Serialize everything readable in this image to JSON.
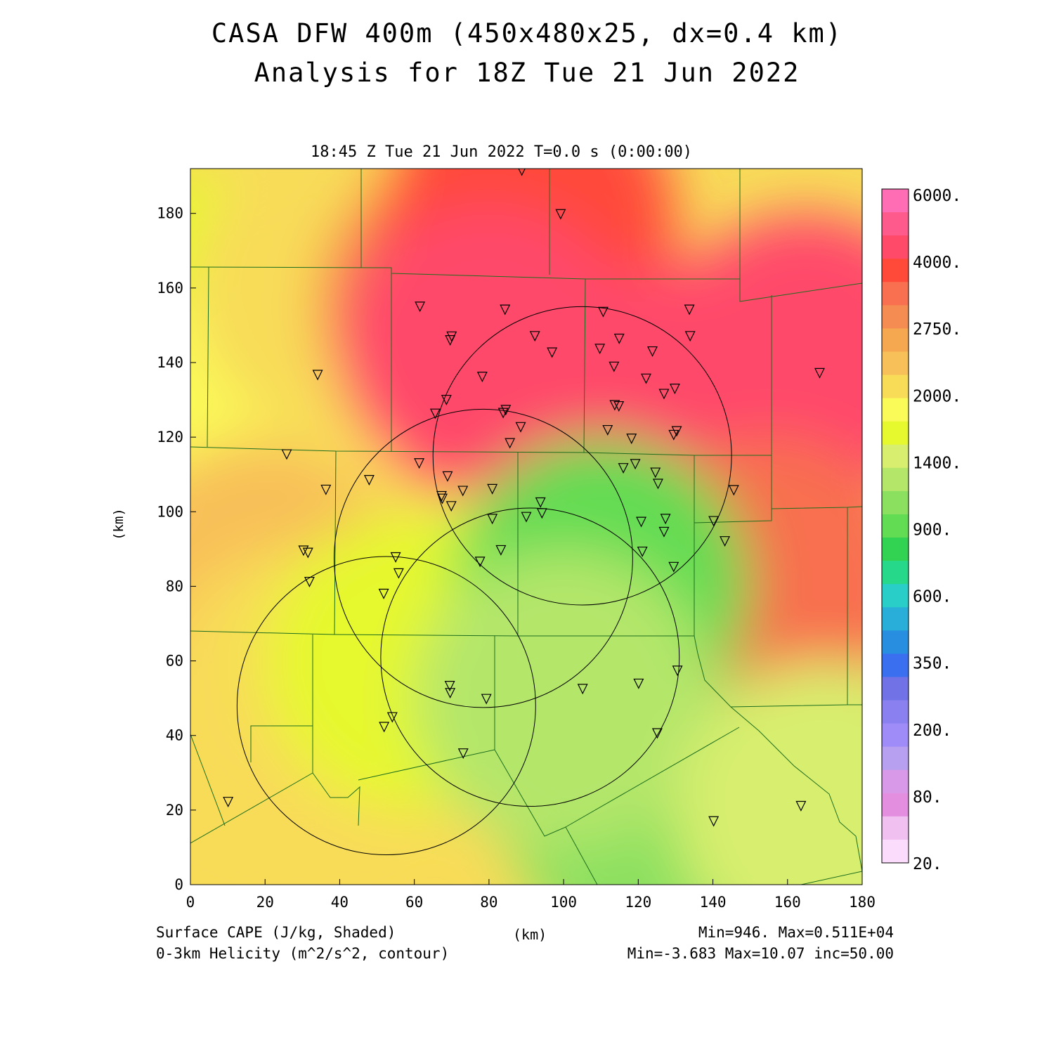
{
  "title": {
    "line1": "CASA DFW 400m (450x480x25, dx=0.4 km)",
    "line2": "Analysis for 18Z Tue 21 Jun 2022"
  },
  "plot_header": "18:45 Z Tue 21 Jun 2022    T=0.0 s (0:00:00)",
  "axes": {
    "xlabel": "(km)",
    "ylabel": "(km)",
    "x_range": [
      0,
      180
    ],
    "y_range": [
      0,
      192
    ],
    "x_ticks": [
      "0",
      "20",
      "40",
      "60",
      "80",
      "100",
      "120",
      "140",
      "160",
      "180"
    ],
    "y_ticks": [
      "0",
      "20",
      "40",
      "60",
      "80",
      "100",
      "120",
      "140",
      "160",
      "180"
    ]
  },
  "footer": {
    "left_line1": "Surface CAPE (J/kg, Shaded)",
    "left_line2": "0-3km Helicity (m^2/s^2, contour)",
    "right_line1": "Min=946. Max=0.511E+04",
    "right_line2": "Min=-3.683 Max=10.07 inc=50.00"
  },
  "colorbar": {
    "labels": [
      "6000.",
      "4000.",
      "2750.",
      "2000.",
      "1400.",
      "900.",
      "600.",
      "350.",
      "200.",
      "80.",
      "20."
    ],
    "colors": [
      "#ff6eb4",
      "#ff5a8c",
      "#ff4a6a",
      "#ff4a3a",
      "#f87050",
      "#f58c52",
      "#f5a850",
      "#f8c058",
      "#f8dc58",
      "#fafa58",
      "#e6f82e",
      "#d8ee6e",
      "#b4e66a",
      "#8ce060",
      "#62dc52",
      "#32d252",
      "#26d88a",
      "#2acec8",
      "#28aed8",
      "#288ee0",
      "#3a70f0",
      "#7072e6",
      "#8a80f0",
      "#a08cf8",
      "#b8a0f0",
      "#d89ae8",
      "#e48ee0",
      "#f0c0f0",
      "#fcdcfc"
    ]
  },
  "chart_data": {
    "type": "heatmap",
    "field": "Surface CAPE (J/kg)",
    "cape_min": 946,
    "cape_max": 5110,
    "helicity_min": -3.683,
    "helicity_max": 10.07,
    "helicity_contour_interval": 50,
    "cape_regions": [
      {
        "level": 1600,
        "x": 5,
        "y": 150
      },
      {
        "level": 1800,
        "x": 25,
        "y": 130
      },
      {
        "level": 2200,
        "x": 40,
        "y": 160
      },
      {
        "level": 3000,
        "x": 75,
        "y": 155
      },
      {
        "level": 3500,
        "x": 90,
        "y": 178
      },
      {
        "level": 4200,
        "x": 80,
        "y": 142
      },
      {
        "level": 4500,
        "x": 133,
        "y": 127
      },
      {
        "level": 4000,
        "x": 165,
        "y": 140
      },
      {
        "level": 3200,
        "x": 155,
        "y": 80
      },
      {
        "level": 2400,
        "x": 20,
        "y": 80
      },
      {
        "level": 2200,
        "x": 30,
        "y": 50
      },
      {
        "level": 1800,
        "x": 80,
        "y": 65
      },
      {
        "level": 1700,
        "x": 60,
        "y": 60
      },
      {
        "level": 1000,
        "x": 110,
        "y": 80
      },
      {
        "level": 1150,
        "x": 125,
        "y": 20
      },
      {
        "level": 1300,
        "x": 100,
        "y": 50
      },
      {
        "level": 1500,
        "x": 170,
        "y": 20
      }
    ],
    "radar_range_rings": [
      {
        "cx": 52.5,
        "cy": 48,
        "r": 40
      },
      {
        "cx": 78.5,
        "cy": 87.5,
        "r": 40
      },
      {
        "cx": 91,
        "cy": 61,
        "r": 40
      },
      {
        "cx": 105,
        "cy": 115,
        "r": 40
      }
    ],
    "stations": [
      [
        88.8,
        191.5
      ],
      [
        99.2,
        179.8
      ],
      [
        61.5,
        155
      ],
      [
        70,
        147
      ],
      [
        69.6,
        146
      ],
      [
        84.3,
        154.2
      ],
      [
        92.3,
        147.1
      ],
      [
        110.6,
        153.6
      ],
      [
        114.9,
        146.4
      ],
      [
        109.7,
        143.7
      ],
      [
        123.8,
        143
      ],
      [
        96.9,
        142.7
      ],
      [
        113.5,
        138.9
      ],
      [
        34.1,
        136.7
      ],
      [
        78.2,
        136.2
      ],
      [
        122.1,
        135.7
      ],
      [
        133.7,
        154.2
      ],
      [
        133.9,
        147.1
      ],
      [
        168.6,
        137.2
      ],
      [
        68.6,
        130
      ],
      [
        113.7,
        128.6
      ],
      [
        114.8,
        128.3
      ],
      [
        126.9,
        131.6
      ],
      [
        129.8,
        133
      ],
      [
        65.6,
        126.3
      ],
      [
        83.8,
        126.5
      ],
      [
        84.5,
        127.3
      ],
      [
        88.5,
        122.7
      ],
      [
        111.8,
        121.9
      ],
      [
        130.3,
        121.6
      ],
      [
        129.5,
        120.6
      ],
      [
        118.2,
        119.6
      ],
      [
        85.6,
        118.4
      ],
      [
        25.8,
        115.4
      ],
      [
        61.3,
        113
      ],
      [
        119.2,
        112.8
      ],
      [
        116,
        111.7
      ],
      [
        68.9,
        109.5
      ],
      [
        124.6,
        110.5
      ],
      [
        47.9,
        108.5
      ],
      [
        125.3,
        107.5
      ],
      [
        36.3,
        105.9
      ],
      [
        73,
        105.6
      ],
      [
        80.9,
        106.1
      ],
      [
        67.5,
        103.5
      ],
      [
        67.3,
        104.2
      ],
      [
        145.6,
        105.8
      ],
      [
        69.9,
        101.5
      ],
      [
        93.8,
        102.5
      ],
      [
        94.2,
        99.6
      ],
      [
        90,
        98.6
      ],
      [
        80.9,
        98.1
      ],
      [
        120.8,
        97.3
      ],
      [
        127.3,
        98.1
      ],
      [
        140.2,
        97.5
      ],
      [
        126.9,
        94.6
      ],
      [
        143.2,
        92.1
      ],
      [
        30.3,
        89.6
      ],
      [
        31.5,
        89
      ],
      [
        83.2,
        89.7
      ],
      [
        121.1,
        89.3
      ],
      [
        55,
        87.8
      ],
      [
        77.6,
        86.6
      ],
      [
        129.5,
        85.2
      ],
      [
        55.8,
        83.5
      ],
      [
        31.9,
        81.2
      ],
      [
        51.8,
        78
      ],
      [
        130.5,
        57.4
      ],
      [
        69.5,
        53.3
      ],
      [
        69.6,
        51.4
      ],
      [
        79.3,
        49.8
      ],
      [
        105.1,
        52.5
      ],
      [
        120.1,
        53.9
      ],
      [
        54.1,
        44.9
      ],
      [
        51.9,
        42.3
      ],
      [
        125.1,
        40.6
      ],
      [
        73.1,
        35.2
      ],
      [
        10.1,
        22.2
      ],
      [
        163.6,
        21.1
      ],
      [
        140.2,
        17
      ]
    ]
  }
}
